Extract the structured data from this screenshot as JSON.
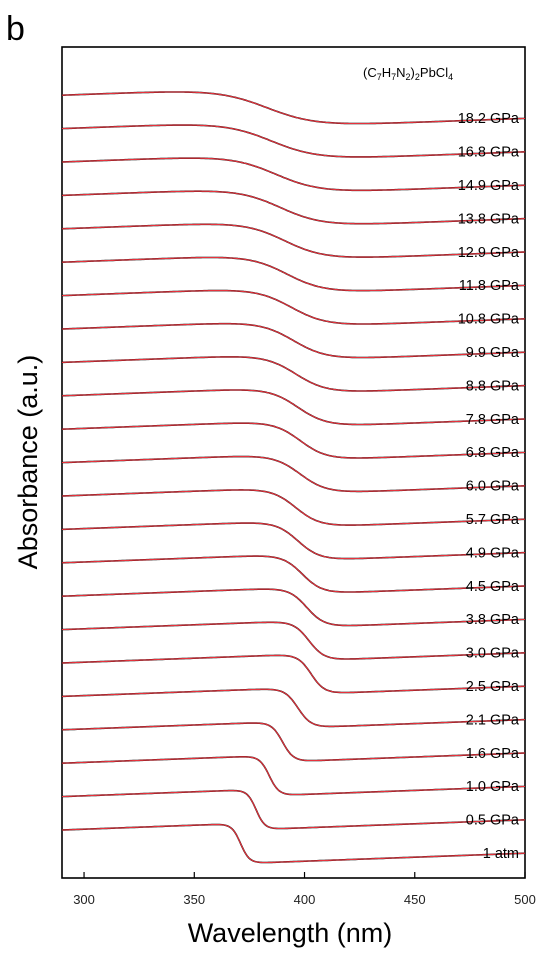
{
  "panel_label": "b",
  "chart_data": {
    "type": "line",
    "title": "",
    "xlabel": "Wavelength (nm)",
    "ylabel": "Absorbance (a.u.)",
    "xlim": [
      290,
      500
    ],
    "xticks": [
      300,
      350,
      400,
      450,
      500
    ],
    "grid": false,
    "annotation": {
      "formula_parts": [
        {
          "t": "(C",
          "sub": false
        },
        {
          "t": "7",
          "sub": true
        },
        {
          "t": "H",
          "sub": false
        },
        {
          "t": "7",
          "sub": true
        },
        {
          "t": "N",
          "sub": false
        },
        {
          "t": "2",
          "sub": true
        },
        {
          "t": ")",
          "sub": false
        },
        {
          "t": "2",
          "sub": true
        },
        {
          "t": "PbCl",
          "sub": false
        },
        {
          "t": "4",
          "sub": true
        }
      ]
    },
    "series_style": {
      "measured_color": "#000000",
      "fit_color": "#e8323c"
    },
    "series": [
      {
        "name": "1 atm",
        "edge_nm": 371,
        "width_nm": 2.0
      },
      {
        "name": "0.5 GPa",
        "edge_nm": 378,
        "width_nm": 2.0
      },
      {
        "name": "1.0 GPa",
        "edge_nm": 384,
        "width_nm": 2.2
      },
      {
        "name": "1.6 GPa",
        "edge_nm": 390,
        "width_nm": 2.5
      },
      {
        "name": "2.1 GPa",
        "edge_nm": 397,
        "width_nm": 3.0
      },
      {
        "name": "2.5 GPa",
        "edge_nm": 403,
        "width_nm": 3.0
      },
      {
        "name": "3.0 GPa",
        "edge_nm": 402,
        "width_nm": 3.5
      },
      {
        "name": "3.8 GPa",
        "edge_nm": 401,
        "width_nm": 4.0
      },
      {
        "name": "4.5 GPa",
        "edge_nm": 399,
        "width_nm": 4.5
      },
      {
        "name": "4.9 GPa",
        "edge_nm": 397,
        "width_nm": 5.0
      },
      {
        "name": "5.7 GPa",
        "edge_nm": 396,
        "width_nm": 5.5
      },
      {
        "name": "6.0 GPa",
        "edge_nm": 398,
        "width_nm": 6.0
      },
      {
        "name": "6.8 GPa",
        "edge_nm": 398,
        "width_nm": 6.0
      },
      {
        "name": "7.8 GPa",
        "edge_nm": 397,
        "width_nm": 6.5
      },
      {
        "name": "8.8 GPa",
        "edge_nm": 396,
        "width_nm": 7.0
      },
      {
        "name": "9.9 GPa",
        "edge_nm": 395,
        "width_nm": 7.5
      },
      {
        "name": "10.8 GPa",
        "edge_nm": 394,
        "width_nm": 8.0
      },
      {
        "name": "11.8 GPa",
        "edge_nm": 392,
        "width_nm": 8.5
      },
      {
        "name": "12.9 GPa",
        "edge_nm": 391,
        "width_nm": 9.0
      },
      {
        "name": "13.8 GPa",
        "edge_nm": 389,
        "width_nm": 9.5
      },
      {
        "name": "14.9 GPa",
        "edge_nm": 387,
        "width_nm": 10.0
      },
      {
        "name": "16.8 GPa",
        "edge_nm": 385,
        "width_nm": 10.5
      },
      {
        "name": "18.2 GPa",
        "edge_nm": 383,
        "width_nm": 11.0
      }
    ]
  }
}
